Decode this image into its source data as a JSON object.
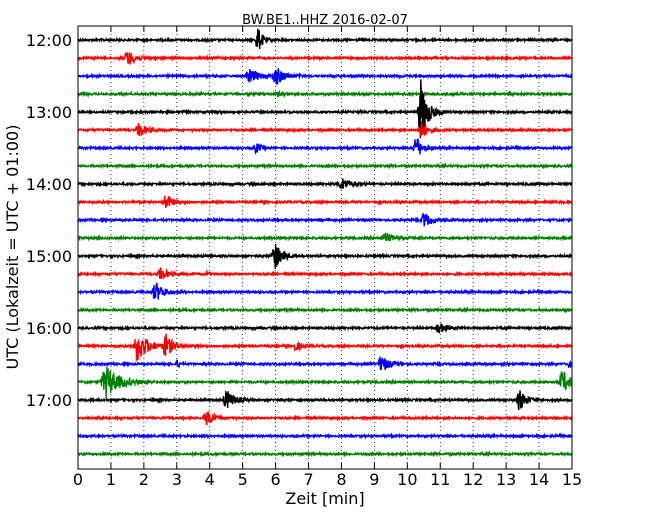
{
  "chart_data": {
    "type": "line",
    "subtype": "seismogram-helicorder",
    "title": "BW.BE1..HHZ 2016-02-07",
    "xlabel": "Zeit  [min]",
    "ylabel": "UTC (Lokalzeit = UTC + 01:00)",
    "xlim": [
      0,
      15
    ],
    "x_ticks": [
      0,
      1,
      2,
      3,
      4,
      5,
      6,
      7,
      8,
      9,
      10,
      11,
      12,
      13,
      14,
      15
    ],
    "y_tick_labels": [
      "12:00",
      "13:00",
      "14:00",
      "15:00",
      "16:00",
      "17:00"
    ],
    "grid": "vertical-dotted",
    "trace_colors": [
      "#000000",
      "#ff0000",
      "#0000ff",
      "#008000"
    ],
    "traces": [
      {
        "start": "12:00",
        "events": [
          {
            "t": 5.45,
            "amp": 14,
            "width": 0.18
          }
        ]
      },
      {
        "start": "12:15",
        "events": [
          {
            "t": 1.5,
            "amp": 8,
            "width": 0.3
          }
        ]
      },
      {
        "start": "12:30",
        "events": [
          {
            "t": 5.2,
            "amp": 7,
            "width": 0.35
          },
          {
            "t": 6.0,
            "amp": 10,
            "width": 0.3
          }
        ]
      },
      {
        "start": "12:45",
        "events": [
          {
            "t": 6.05,
            "amp": 3,
            "width": 0.1
          }
        ]
      },
      {
        "start": "13:00",
        "events": [
          {
            "t": 10.4,
            "amp": 34,
            "width": 0.25
          }
        ]
      },
      {
        "start": "13:15",
        "events": [
          {
            "t": 1.85,
            "amp": 7,
            "width": 0.3
          },
          {
            "t": 10.4,
            "amp": 10,
            "width": 0.25
          }
        ]
      },
      {
        "start": "13:30",
        "events": [
          {
            "t": 5.4,
            "amp": 5,
            "width": 0.2
          },
          {
            "t": 10.25,
            "amp": 14,
            "width": 0.2
          }
        ]
      },
      {
        "start": "13:45",
        "events": []
      },
      {
        "start": "14:00",
        "events": [
          {
            "t": 8.0,
            "amp": 6,
            "width": 0.35
          }
        ]
      },
      {
        "start": "14:15",
        "events": [
          {
            "t": 2.65,
            "amp": 8,
            "width": 0.25
          }
        ]
      },
      {
        "start": "14:30",
        "events": [
          {
            "t": 10.5,
            "amp": 8,
            "width": 0.25
          }
        ]
      },
      {
        "start": "14:45",
        "events": [
          {
            "t": 9.35,
            "amp": 4,
            "width": 0.4
          }
        ]
      },
      {
        "start": "15:00",
        "events": [
          {
            "t": 5.95,
            "amp": 16,
            "width": 0.25
          }
        ]
      },
      {
        "start": "15:15",
        "events": [
          {
            "t": 2.5,
            "amp": 6,
            "width": 0.3
          },
          {
            "t": 3.9,
            "amp": 3,
            "width": 0.1
          }
        ]
      },
      {
        "start": "15:30",
        "events": [
          {
            "t": 2.35,
            "amp": 10,
            "width": 0.3
          }
        ]
      },
      {
        "start": "15:45",
        "events": []
      },
      {
        "start": "16:00",
        "events": [
          {
            "t": 10.95,
            "amp": 5,
            "width": 0.3
          }
        ]
      },
      {
        "start": "16:15",
        "events": [
          {
            "t": 1.8,
            "amp": 16,
            "width": 0.4
          },
          {
            "t": 2.65,
            "amp": 12,
            "width": 0.25
          },
          {
            "t": 6.6,
            "amp": 4,
            "width": 0.25
          }
        ]
      },
      {
        "start": "16:30",
        "events": [
          {
            "t": 3.0,
            "amp": 4,
            "width": 0.1
          },
          {
            "t": 9.2,
            "amp": 9,
            "width": 0.3
          },
          {
            "t": 14.9,
            "amp": 4,
            "width": 0.1
          }
        ]
      },
      {
        "start": "16:45",
        "events": [
          {
            "t": 0.85,
            "amp": 16,
            "width": 0.5
          },
          {
            "t": 14.7,
            "amp": 12,
            "width": 0.3
          }
        ]
      },
      {
        "start": "17:00",
        "events": [
          {
            "t": 4.5,
            "amp": 10,
            "width": 0.3
          },
          {
            "t": 13.4,
            "amp": 11,
            "width": 0.25
          }
        ]
      },
      {
        "start": "17:15",
        "events": [
          {
            "t": 3.9,
            "amp": 7,
            "width": 0.3
          }
        ]
      },
      {
        "start": "17:30",
        "events": []
      },
      {
        "start": "17:45",
        "events": []
      }
    ]
  }
}
